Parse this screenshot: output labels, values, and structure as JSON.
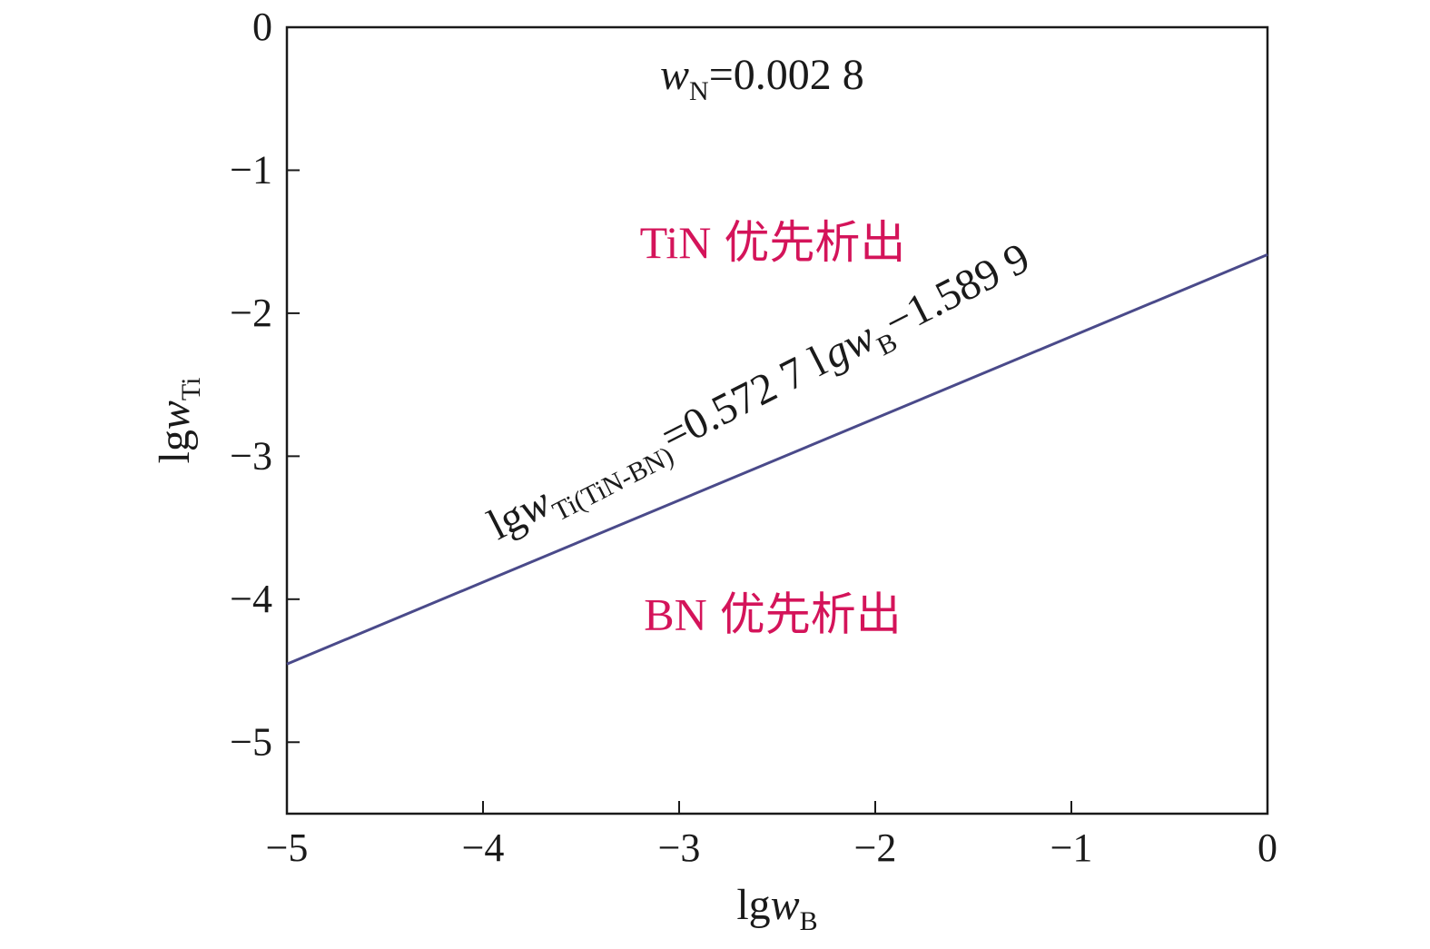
{
  "chart_data": {
    "type": "line",
    "xlabel": {
      "main": "lg",
      "var": "w",
      "sub": "B"
    },
    "ylabel": {
      "main": "lg",
      "var": "w",
      "sub": "Ti"
    },
    "xlim": [
      -5,
      0
    ],
    "ylim": [
      -5.5,
      0
    ],
    "x_ticks": [
      -5,
      -4,
      -3,
      -2,
      -1,
      0
    ],
    "y_ticks": [
      0,
      -1,
      -2,
      -3,
      -4,
      -5
    ],
    "x_tick_labels": [
      "−5",
      "−4",
      "−3",
      "−2",
      "−1",
      "0"
    ],
    "y_tick_labels": [
      "0",
      "−1",
      "−2",
      "−3",
      "−4",
      "−5"
    ],
    "grid": false,
    "series": [
      {
        "x": [
          -5,
          0
        ],
        "y": [
          -4.4535,
          -1.5899
        ],
        "color": "#4a4a8a"
      }
    ],
    "equation": {
      "lhs_main": "lg",
      "lhs_var": "w",
      "lhs_sub": "Ti(TiN-BN)",
      "mid": "=0.572 7 l",
      "mid_var": "gw",
      "mid_sub": "B",
      "tail": "−1.589 9",
      "slope_deg": -27
    },
    "annotations": [
      {
        "var": "w",
        "sub": "N",
        "text": "=0.002 8"
      }
    ],
    "regions": [
      {
        "formula": "TiN",
        "label": "优先析出",
        "x": -2.5,
        "y": -1.5
      },
      {
        "formula": "BN",
        "label": "优先析出",
        "x": -2.5,
        "y": -4.1
      }
    ]
  }
}
